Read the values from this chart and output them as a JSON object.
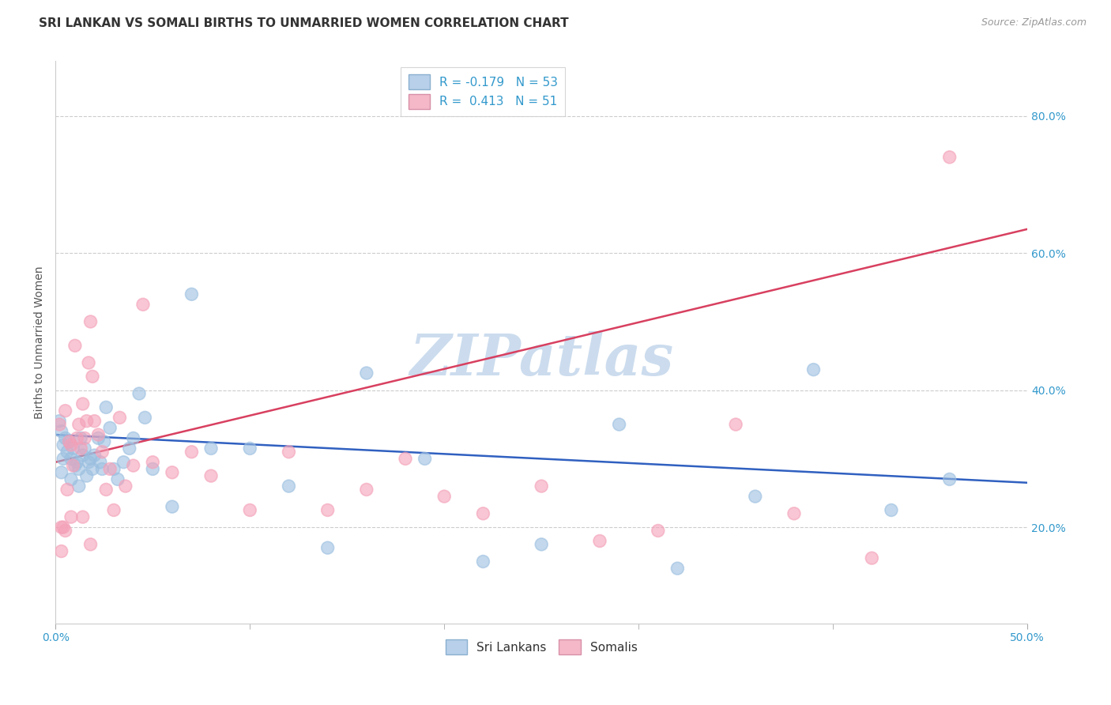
{
  "title": "SRI LANKAN VS SOMALI BIRTHS TO UNMARRIED WOMEN CORRELATION CHART",
  "source": "Source: ZipAtlas.com",
  "ylabel": "Births to Unmarried Women",
  "y_ticks": [
    0.2,
    0.4,
    0.6,
    0.8
  ],
  "y_tick_labels": [
    "20.0%",
    "40.0%",
    "60.0%",
    "80.0%"
  ],
  "x_range": [
    0.0,
    0.5
  ],
  "y_range": [
    0.06,
    0.88
  ],
  "legend_label_1": "R = -0.179   N = 53",
  "legend_label_2": "R =  0.413   N = 51",
  "legend_color_1": "#b8d0ea",
  "legend_color_2": "#f4b8c8",
  "scatter_color_1": "#9bbfe0",
  "scatter_color_2": "#f4a0b8",
  "line_color_1": "#3060c0",
  "line_color_2": "#d84060",
  "watermark": "ZIPatlas",
  "watermark_color": "#ccdcee",
  "sl_line_x0": 0.0,
  "sl_line_x1": 0.5,
  "sl_line_y0": 0.335,
  "sl_line_y1": 0.265,
  "so_line_x0": 0.0,
  "so_line_x1": 0.5,
  "so_line_y0": 0.295,
  "so_line_y1": 0.635,
  "sri_lankans_x": [
    0.002,
    0.003,
    0.004,
    0.005,
    0.006,
    0.007,
    0.008,
    0.009,
    0.01,
    0.011,
    0.012,
    0.013,
    0.014,
    0.015,
    0.016,
    0.017,
    0.018,
    0.019,
    0.02,
    0.022,
    0.023,
    0.024,
    0.025,
    0.026,
    0.028,
    0.03,
    0.032,
    0.035,
    0.038,
    0.04,
    0.043,
    0.046,
    0.05,
    0.06,
    0.07,
    0.08,
    0.1,
    0.12,
    0.14,
    0.16,
    0.19,
    0.22,
    0.25,
    0.29,
    0.32,
    0.36,
    0.39,
    0.43,
    0.46,
    0.003,
    0.004,
    0.008,
    0.012
  ],
  "sri_lankans_y": [
    0.355,
    0.34,
    0.32,
    0.33,
    0.31,
    0.325,
    0.3,
    0.315,
    0.29,
    0.295,
    0.285,
    0.33,
    0.305,
    0.315,
    0.275,
    0.295,
    0.3,
    0.285,
    0.305,
    0.33,
    0.295,
    0.285,
    0.325,
    0.375,
    0.345,
    0.285,
    0.27,
    0.295,
    0.315,
    0.33,
    0.395,
    0.36,
    0.285,
    0.23,
    0.54,
    0.315,
    0.315,
    0.26,
    0.17,
    0.425,
    0.3,
    0.15,
    0.175,
    0.35,
    0.14,
    0.245,
    0.43,
    0.225,
    0.27,
    0.28,
    0.3,
    0.27,
    0.26
  ],
  "somalis_x": [
    0.002,
    0.003,
    0.004,
    0.005,
    0.006,
    0.007,
    0.008,
    0.009,
    0.01,
    0.011,
    0.012,
    0.013,
    0.014,
    0.015,
    0.016,
    0.017,
    0.018,
    0.019,
    0.02,
    0.022,
    0.024,
    0.026,
    0.028,
    0.03,
    0.033,
    0.036,
    0.04,
    0.045,
    0.05,
    0.06,
    0.07,
    0.08,
    0.1,
    0.12,
    0.14,
    0.16,
    0.18,
    0.2,
    0.22,
    0.25,
    0.28,
    0.31,
    0.35,
    0.38,
    0.42,
    0.46,
    0.003,
    0.005,
    0.008,
    0.014,
    0.018
  ],
  "somalis_y": [
    0.35,
    0.2,
    0.2,
    0.37,
    0.255,
    0.325,
    0.32,
    0.29,
    0.465,
    0.33,
    0.35,
    0.315,
    0.38,
    0.33,
    0.355,
    0.44,
    0.5,
    0.42,
    0.355,
    0.335,
    0.31,
    0.255,
    0.285,
    0.225,
    0.36,
    0.26,
    0.29,
    0.525,
    0.295,
    0.28,
    0.31,
    0.275,
    0.225,
    0.31,
    0.225,
    0.255,
    0.3,
    0.245,
    0.22,
    0.26,
    0.18,
    0.195,
    0.35,
    0.22,
    0.155,
    0.74,
    0.165,
    0.195,
    0.215,
    0.215,
    0.175
  ],
  "title_fontsize": 11,
  "axis_label_fontsize": 10,
  "tick_fontsize": 10,
  "source_fontsize": 9,
  "legend_fontsize": 11
}
